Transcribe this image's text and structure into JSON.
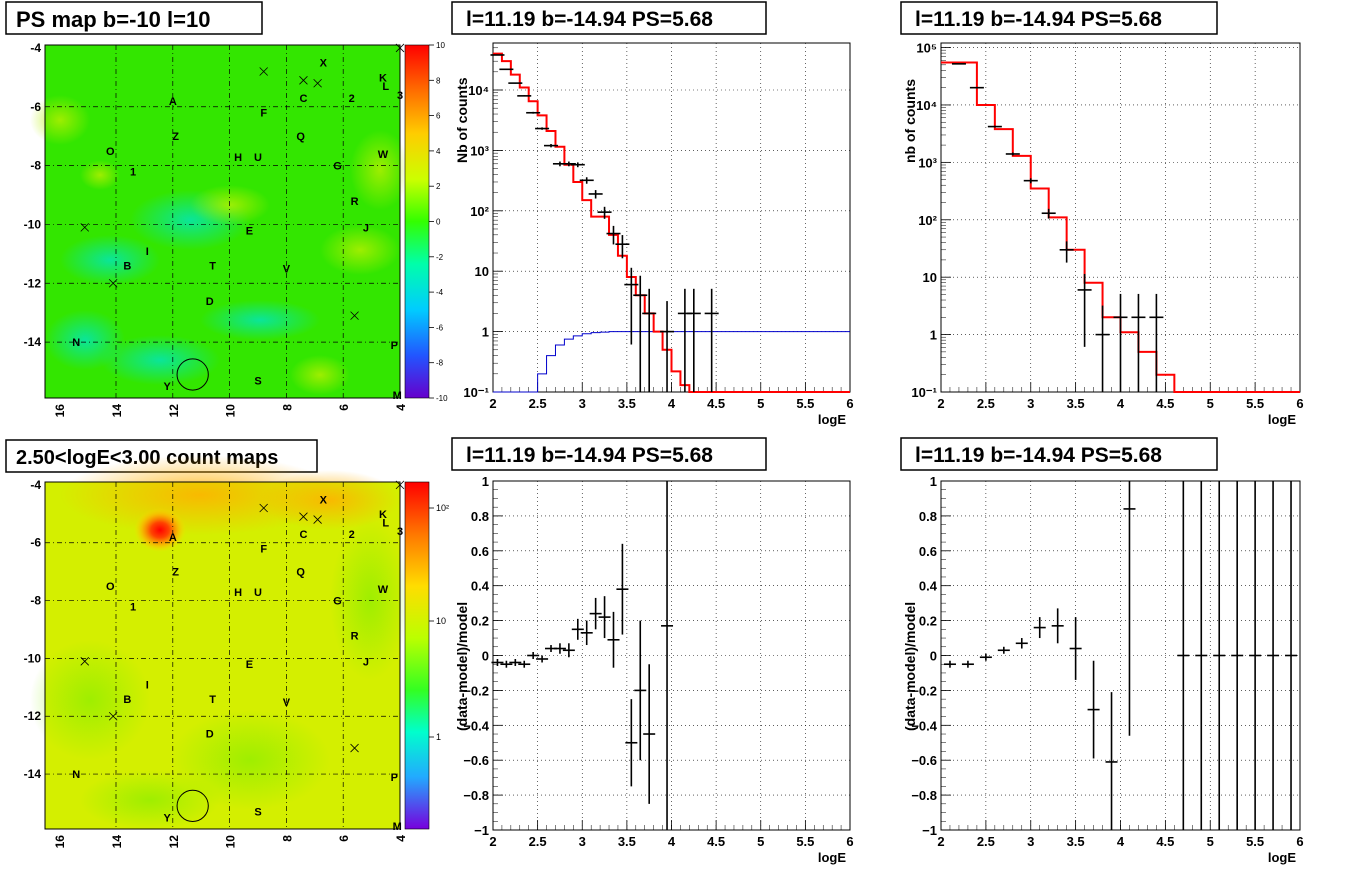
{
  "map_top": {
    "title": "PS map b=-10 l=10",
    "x_ticks": [
      "16",
      "14",
      "12",
      "10",
      "8",
      "6",
      "4"
    ],
    "y_ticks": [
      "-4",
      "-6",
      "-8",
      "-10",
      "-12",
      "-14"
    ],
    "colorbar_ticks": [
      "10",
      "8",
      "6",
      "4",
      "2",
      "0",
      "-2",
      "-4",
      "-6",
      "-8",
      "-10"
    ],
    "base_color": "#33e600",
    "source_labels": [
      {
        "text": "X",
        "l": 6.7,
        "b": -4.5
      },
      {
        "text": "K",
        "l": 4.6,
        "b": -5.0
      },
      {
        "text": "L",
        "l": 4.5,
        "b": -5.3
      },
      {
        "text": "3",
        "l": 4.0,
        "b": -5.6
      },
      {
        "text": "C",
        "l": 7.4,
        "b": -5.7
      },
      {
        "text": "2",
        "l": 5.7,
        "b": -5.7
      },
      {
        "text": "A",
        "l": 12.0,
        "b": -5.8
      },
      {
        "text": "F",
        "l": 8.8,
        "b": -6.2
      },
      {
        "text": "Z",
        "l": 11.9,
        "b": -7.0
      },
      {
        "text": "Q",
        "l": 7.5,
        "b": -7.0
      },
      {
        "text": "O",
        "l": 14.2,
        "b": -7.5
      },
      {
        "text": "H",
        "l": 9.7,
        "b": -7.7
      },
      {
        "text": "U",
        "l": 9.0,
        "b": -7.7
      },
      {
        "text": "W",
        "l": 4.6,
        "b": -7.6
      },
      {
        "text": "G",
        "l": 6.2,
        "b": -8.0
      },
      {
        "text": "1",
        "l": 13.4,
        "b": -8.2
      },
      {
        "text": "R",
        "l": 5.6,
        "b": -9.2
      },
      {
        "text": "E",
        "l": 9.3,
        "b": -10.2
      },
      {
        "text": "J",
        "l": 5.2,
        "b": -10.1
      },
      {
        "text": "I",
        "l": 12.9,
        "b": -10.9
      },
      {
        "text": "B",
        "l": 13.6,
        "b": -11.4
      },
      {
        "text": "T",
        "l": 10.6,
        "b": -11.4
      },
      {
        "text": "V",
        "l": 8.0,
        "b": -11.5
      },
      {
        "text": "D",
        "l": 10.7,
        "b": -12.6
      },
      {
        "text": "N",
        "l": 15.4,
        "b": -14.0
      },
      {
        "text": "P",
        "l": 4.2,
        "b": -14.1
      },
      {
        "text": "S",
        "l": 9.0,
        "b": -15.3
      },
      {
        "text": "Y",
        "l": 12.2,
        "b": -15.5
      },
      {
        "text": "M",
        "l": 4.1,
        "b": -15.8
      }
    ],
    "markers": [
      {
        "l": 8.8,
        "b": -4.8
      },
      {
        "l": 7.4,
        "b": -5.1
      },
      {
        "l": 6.9,
        "b": -5.2
      },
      {
        "l": 15.1,
        "b": -10.1
      },
      {
        "l": 14.1,
        "b": -12.0
      },
      {
        "l": 5.6,
        "b": -13.1
      },
      {
        "l": 4.0,
        "b": -4.0
      }
    ],
    "circle": {
      "l": 11.3,
      "b": -15.1,
      "r": 0.55
    }
  },
  "map_bottom": {
    "title": "2.50<logE<3.00 count maps",
    "x_ticks": [
      "16",
      "14",
      "12",
      "10",
      "8",
      "6",
      "4"
    ],
    "y_ticks": [
      "-4",
      "-6",
      "-8",
      "-10",
      "-12",
      "-14"
    ],
    "colorbar_ticks": [
      "10²",
      "10",
      "1"
    ],
    "base_color": "#d4ef00"
  },
  "chart_data": [
    {
      "type": "line",
      "title": "l=11.19 b=-14.94 PS=5.68",
      "xlabel": "logE",
      "ylabel": "Nb of counts",
      "xlim": [
        2,
        6
      ],
      "ylim": [
        0.1,
        60000
      ],
      "yscale": "log",
      "grid": true,
      "x_ticks": [
        "2",
        "2.5",
        "3",
        "3.5",
        "4",
        "4.5",
        "5",
        "5.5",
        "6"
      ],
      "y_ticks": [
        "10⁻¹",
        "1",
        "10",
        "10²",
        "10³",
        "10⁴"
      ],
      "data_points": [
        {
          "x": 2.05,
          "y": 38000
        },
        {
          "x": 2.15,
          "y": 22000
        },
        {
          "x": 2.25,
          "y": 13000
        },
        {
          "x": 2.35,
          "y": 8000
        },
        {
          "x": 2.45,
          "y": 4200
        },
        {
          "x": 2.55,
          "y": 2300
        },
        {
          "x": 2.65,
          "y": 1200
        },
        {
          "x": 2.75,
          "y": 600
        },
        {
          "x": 2.85,
          "y": 600
        },
        {
          "x": 2.95,
          "y": 580
        },
        {
          "x": 3.05,
          "y": 320
        },
        {
          "x": 3.15,
          "y": 190
        },
        {
          "x": 3.25,
          "y": 95
        },
        {
          "x": 3.35,
          "y": 42
        },
        {
          "x": 3.45,
          "y": 28
        },
        {
          "x": 3.55,
          "y": 6
        },
        {
          "x": 3.65,
          "y": 4
        },
        {
          "x": 3.75,
          "y": 2
        },
        {
          "x": 3.95,
          "y": 1
        },
        {
          "x": 4.15,
          "y": 2
        },
        {
          "x": 4.25,
          "y": 2
        },
        {
          "x": 4.45,
          "y": 2
        }
      ],
      "model_steps": [
        {
          "x": 2.0,
          "y": 40000
        },
        {
          "x": 2.1,
          "y": 30000
        },
        {
          "x": 2.2,
          "y": 18000
        },
        {
          "x": 2.3,
          "y": 11000
        },
        {
          "x": 2.4,
          "y": 6500
        },
        {
          "x": 2.5,
          "y": 3800
        },
        {
          "x": 2.6,
          "y": 2100
        },
        {
          "x": 2.7,
          "y": 1150
        },
        {
          "x": 2.8,
          "y": 580
        },
        {
          "x": 2.9,
          "y": 300
        },
        {
          "x": 3.0,
          "y": 150
        },
        {
          "x": 3.1,
          "y": 80
        },
        {
          "x": 3.2,
          "y": 80
        },
        {
          "x": 3.3,
          "y": 40
        },
        {
          "x": 3.4,
          "y": 18
        },
        {
          "x": 3.5,
          "y": 8
        },
        {
          "x": 3.6,
          "y": 4
        },
        {
          "x": 3.7,
          "y": 2
        },
        {
          "x": 3.8,
          "y": 1
        },
        {
          "x": 3.9,
          "y": 0.5
        },
        {
          "x": 4.0,
          "y": 0.22
        },
        {
          "x": 4.1,
          "y": 0.13
        },
        {
          "x": 4.2,
          "y": 0.1
        },
        {
          "x": 6.0,
          "y": 0.1
        }
      ],
      "baseline_steps": [
        {
          "x": 2.0,
          "y": 0.05
        },
        {
          "x": 2.4,
          "y": 0.1
        },
        {
          "x": 2.5,
          "y": 0.2
        },
        {
          "x": 2.6,
          "y": 0.4
        },
        {
          "x": 2.7,
          "y": 0.6
        },
        {
          "x": 2.8,
          "y": 0.75
        },
        {
          "x": 2.9,
          "y": 0.85
        },
        {
          "x": 3.0,
          "y": 0.92
        },
        {
          "x": 3.1,
          "y": 0.96
        },
        {
          "x": 3.2,
          "y": 0.98
        },
        {
          "x": 3.3,
          "y": 1.0
        },
        {
          "x": 6.0,
          "y": 1.0
        }
      ]
    },
    {
      "type": "line",
      "title": "l=11.19 b=-14.94 PS=5.68",
      "xlabel": "logE",
      "ylabel": "nb of counts",
      "xlim": [
        2,
        6
      ],
      "ylim": [
        0.1,
        120000
      ],
      "yscale": "log",
      "grid": true,
      "x_ticks": [
        "2",
        "2.5",
        "3",
        "3.5",
        "4",
        "4.5",
        "5",
        "5.5",
        "6"
      ],
      "y_ticks": [
        "10⁻¹",
        "1",
        "10",
        "10²",
        "10³",
        "10⁴",
        "10⁵"
      ],
      "data_points": [
        {
          "x": 2.2,
          "y": 52000
        },
        {
          "x": 2.4,
          "y": 20000
        },
        {
          "x": 2.6,
          "y": 4200
        },
        {
          "x": 2.8,
          "y": 1400
        },
        {
          "x": 3.0,
          "y": 480
        },
        {
          "x": 3.2,
          "y": 130
        },
        {
          "x": 3.4,
          "y": 30
        },
        {
          "x": 3.6,
          "y": 6
        },
        {
          "x": 3.8,
          "y": 1
        },
        {
          "x": 4.0,
          "y": 2
        },
        {
          "x": 4.2,
          "y": 2
        },
        {
          "x": 4.4,
          "y": 2
        }
      ],
      "model_steps": [
        {
          "x": 2.0,
          "y": 55000
        },
        {
          "x": 2.2,
          "y": 55000
        },
        {
          "x": 2.4,
          "y": 10000
        },
        {
          "x": 2.6,
          "y": 3800
        },
        {
          "x": 2.8,
          "y": 1300
        },
        {
          "x": 3.0,
          "y": 350
        },
        {
          "x": 3.2,
          "y": 110
        },
        {
          "x": 3.4,
          "y": 30
        },
        {
          "x": 3.6,
          "y": 8
        },
        {
          "x": 3.8,
          "y": 2
        },
        {
          "x": 4.0,
          "y": 1.1
        },
        {
          "x": 4.2,
          "y": 0.5
        },
        {
          "x": 4.4,
          "y": 0.2
        },
        {
          "x": 4.6,
          "y": 0.1
        },
        {
          "x": 6.0,
          "y": 0.1
        }
      ]
    },
    {
      "type": "scatter",
      "title": "l=11.19 b=-14.94 PS=5.68",
      "xlabel": "logE",
      "ylabel": "(data-model)/model",
      "xlim": [
        2,
        6
      ],
      "ylim": [
        -1,
        1
      ],
      "grid": true,
      "x_ticks": [
        "2",
        "2.5",
        "3",
        "3.5",
        "4",
        "4.5",
        "5",
        "5.5",
        "6"
      ],
      "y_ticks": [
        "1",
        "0.8",
        "0.6",
        "0.4",
        "0.2",
        "0",
        "−0.2",
        "−0.4",
        "−0.6",
        "−0.8",
        "−1"
      ],
      "points": [
        {
          "x": 2.05,
          "y": -0.04,
          "err": 0.02
        },
        {
          "x": 2.15,
          "y": -0.05,
          "err": 0.02
        },
        {
          "x": 2.25,
          "y": -0.04,
          "err": 0.02
        },
        {
          "x": 2.35,
          "y": -0.05,
          "err": 0.02
        },
        {
          "x": 2.45,
          "y": 0.0,
          "err": 0.02
        },
        {
          "x": 2.55,
          "y": -0.02,
          "err": 0.02
        },
        {
          "x": 2.65,
          "y": 0.04,
          "err": 0.02
        },
        {
          "x": 2.75,
          "y": 0.04,
          "err": 0.03
        },
        {
          "x": 2.85,
          "y": 0.03,
          "err": 0.04
        },
        {
          "x": 2.95,
          "y": 0.15,
          "err": 0.06
        },
        {
          "x": 3.05,
          "y": 0.13,
          "err": 0.07
        },
        {
          "x": 3.15,
          "y": 0.24,
          "err": 0.09
        },
        {
          "x": 3.25,
          "y": 0.22,
          "err": 0.12
        },
        {
          "x": 3.35,
          "y": 0.09,
          "err": 0.16
        },
        {
          "x": 3.45,
          "y": 0.38,
          "err": 0.26
        },
        {
          "x": 3.55,
          "y": -0.5,
          "err": 0.25
        },
        {
          "x": 3.65,
          "y": -0.2,
          "err": 0.4
        },
        {
          "x": 3.75,
          "y": -0.45,
          "err": 0.4
        },
        {
          "x": 3.95,
          "y": 0.17,
          "err": 1.2
        }
      ]
    },
    {
      "type": "scatter",
      "title": "l=11.19 b=-14.94 PS=5.68",
      "xlabel": "logE",
      "ylabel": "(data-model)/model",
      "xlim": [
        2,
        6
      ],
      "ylim": [
        -1,
        1
      ],
      "grid": true,
      "x_ticks": [
        "2",
        "2.5",
        "3",
        "3.5",
        "4",
        "4.5",
        "5",
        "5.5",
        "6"
      ],
      "y_ticks": [
        "1",
        "0.8",
        "0.6",
        "0.4",
        "0.2",
        "0",
        "−0.2",
        "−0.4",
        "−0.6",
        "−0.8",
        "−1"
      ],
      "points": [
        {
          "x": 2.1,
          "y": -0.05,
          "err": 0.02
        },
        {
          "x": 2.3,
          "y": -0.05,
          "err": 0.02
        },
        {
          "x": 2.5,
          "y": -0.01,
          "err": 0.02
        },
        {
          "x": 2.7,
          "y": 0.03,
          "err": 0.02
        },
        {
          "x": 2.9,
          "y": 0.07,
          "err": 0.03
        },
        {
          "x": 3.1,
          "y": 0.16,
          "err": 0.06
        },
        {
          "x": 3.3,
          "y": 0.17,
          "err": 0.1
        },
        {
          "x": 3.5,
          "y": 0.04,
          "err": 0.18
        },
        {
          "x": 3.7,
          "y": -0.31,
          "err": 0.28
        },
        {
          "x": 3.9,
          "y": -0.61,
          "err": 0.4
        },
        {
          "x": 4.1,
          "y": 0.84,
          "err": 1.3
        },
        {
          "x": 4.7,
          "y": 0.0,
          "err": 2.0
        },
        {
          "x": 4.9,
          "y": 0.0,
          "err": 2.0
        },
        {
          "x": 5.1,
          "y": 0.0,
          "err": 2.0
        },
        {
          "x": 5.3,
          "y": 0.0,
          "err": 2.0
        },
        {
          "x": 5.5,
          "y": 0.0,
          "err": 2.0
        },
        {
          "x": 5.7,
          "y": 0.0,
          "err": 2.0
        },
        {
          "x": 5.9,
          "y": 0.0,
          "err": 2.0
        }
      ]
    }
  ]
}
